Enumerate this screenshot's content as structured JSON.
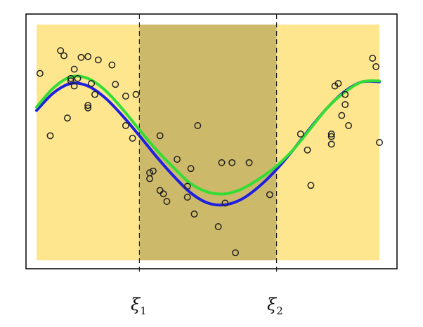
{
  "chart_data": {
    "type": "scatter",
    "title": "",
    "xlabel": "",
    "ylabel": "",
    "xlim": [
      0,
      1
    ],
    "ylim": [
      -1.7,
      1.1
    ],
    "grid": false,
    "knots": [
      {
        "x": 0.3,
        "symbol": "ξ",
        "index": "1"
      },
      {
        "x": 0.7,
        "symbol": "ξ",
        "index": "2"
      }
    ],
    "regions": [
      {
        "x0": 0.0,
        "x1": 0.3,
        "color": "#fde68e"
      },
      {
        "x0": 0.3,
        "x1": 0.7,
        "color": "#cdb96a"
      },
      {
        "x0": 0.7,
        "x1": 1.0,
        "color": "#fde68e"
      }
    ],
    "series": [
      {
        "kind": "points",
        "color": "#222222",
        "x": [
          0.01,
          0.04,
          0.07,
          0.08,
          0.09,
          0.1,
          0.1,
          0.11,
          0.11,
          0.12,
          0.13,
          0.15,
          0.15,
          0.15,
          0.16,
          0.17,
          0.18,
          0.22,
          0.23,
          0.26,
          0.26,
          0.28,
          0.29,
          0.33,
          0.33,
          0.34,
          0.36,
          0.36,
          0.37,
          0.38,
          0.41,
          0.44,
          0.44,
          0.45,
          0.46,
          0.47,
          0.53,
          0.54,
          0.55,
          0.57,
          0.58,
          0.62,
          0.68,
          0.77,
          0.79,
          0.8,
          0.86,
          0.86,
          0.86,
          0.87,
          0.88,
          0.89,
          0.9,
          0.9,
          0.91,
          0.98,
          0.99,
          1.0
        ],
        "y": [
          0.52,
          -0.22,
          0.79,
          0.73,
          -0.01,
          0.43,
          0.46,
          0.57,
          0.37,
          0.46,
          0.71,
          0.11,
          0.14,
          0.72,
          0.4,
          0.27,
          0.68,
          0.62,
          0.39,
          0.25,
          -0.1,
          -0.25,
          0.27,
          -0.66,
          -0.73,
          -0.64,
          -0.87,
          -0.22,
          -0.91,
          -1.0,
          -0.5,
          -0.82,
          -0.95,
          -0.61,
          -1.15,
          -0.1,
          -1.3,
          -0.54,
          -1.02,
          -0.54,
          -1.61,
          -0.54,
          -0.92,
          -0.2,
          -0.39,
          -0.81,
          -0.2,
          -0.23,
          -0.32,
          0.37,
          0.4,
          0.02,
          0.27,
          0.15,
          -0.1,
          0.7,
          0.6,
          -0.3
        ]
      },
      {
        "kind": "curve",
        "color": "#1f1fe0",
        "x": [
          0,
          0.05,
          0.1,
          0.15,
          0.2,
          0.25,
          0.3,
          0.35,
          0.4,
          0.45,
          0.5,
          0.55,
          0.6,
          0.65,
          0.7,
          0.75,
          0.8,
          0.85,
          0.9,
          0.95,
          1.0
        ],
        "y": [
          0.08,
          0.29,
          0.4,
          0.37,
          0.23,
          0.02,
          -0.22,
          -0.47,
          -0.7,
          -0.9,
          -1.02,
          -1.04,
          -0.97,
          -0.82,
          -0.62,
          -0.38,
          -0.12,
          0.12,
          0.31,
          0.42,
          0.42
        ]
      },
      {
        "kind": "curve",
        "color": "#33dd33",
        "x": [
          0,
          0.05,
          0.1,
          0.15,
          0.2,
          0.25,
          0.3,
          0.35,
          0.4,
          0.45,
          0.5,
          0.55,
          0.6,
          0.65,
          0.7,
          0.75,
          0.8,
          0.85,
          0.9,
          0.95,
          1.0
        ],
        "y": [
          0.12,
          0.35,
          0.48,
          0.46,
          0.32,
          0.1,
          -0.15,
          -0.39,
          -0.6,
          -0.79,
          -0.89,
          -0.91,
          -0.85,
          -0.73,
          -0.58,
          -0.38,
          -0.13,
          0.12,
          0.3,
          0.42,
          0.43
        ]
      }
    ]
  }
}
